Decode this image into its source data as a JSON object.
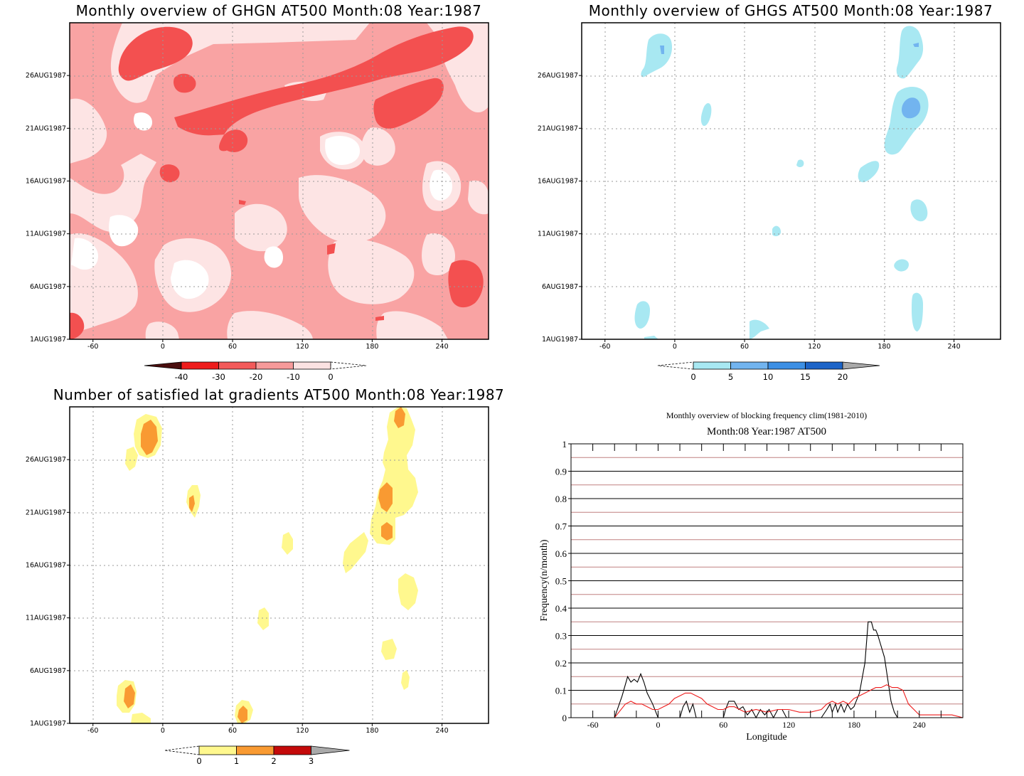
{
  "chart_data": [
    {
      "type": "heatmap",
      "title": "Monthly overview of GHGN AT500 Month:08 Year:1987",
      "x_ticks": [
        -60,
        0,
        60,
        120,
        180,
        240
      ],
      "xlim": [
        -80,
        280
      ],
      "y_ticks": [
        "1AUG1987",
        "6AUG1987",
        "11AUG1987",
        "16AUG1987",
        "21AUG1987",
        "26AUG1987"
      ],
      "colorbar": {
        "labels": [
          "-40",
          "-30",
          "-20",
          "-10",
          "0"
        ],
        "colors": [
          "#4a0e0e",
          "#ee1c1c",
          "#f35a5a",
          "#f79a9a",
          "#fbe2e2"
        ]
      },
      "colors": {
        "background": "#f9a3a3",
        "light": "#fde4e4",
        "white": "#ffffff",
        "dark": "#f35050"
      }
    },
    {
      "type": "heatmap",
      "title": "Monthly overview of GHGS AT500 Month:08 Year:1987",
      "x_ticks": [
        -60,
        0,
        60,
        120,
        180,
        240
      ],
      "xlim": [
        -80,
        280
      ],
      "y_ticks": [
        "1AUG1987",
        "6AUG1987",
        "11AUG1987",
        "16AUG1987",
        "21AUG1987",
        "26AUG1987"
      ],
      "colorbar": {
        "labels": [
          "0",
          "5",
          "10",
          "15",
          "20"
        ],
        "colors": [
          "#a8e8f2",
          "#72b4ef",
          "#3c8fe4",
          "#1c64c8",
          "#a9a9a9"
        ]
      }
    },
    {
      "type": "heatmap",
      "title": "Number of satisfied lat gradients AT500 Month:08 Year:1987",
      "x_ticks": [
        -60,
        0,
        60,
        120,
        180,
        240
      ],
      "xlim": [
        -80,
        280
      ],
      "y_ticks": [
        "1AUG1987",
        "6AUG1987",
        "11AUG1987",
        "16AUG1987",
        "21AUG1987",
        "26AUG1987"
      ],
      "colorbar": {
        "labels": [
          "0",
          "1",
          "2",
          "3"
        ],
        "colors": [
          "#fff88e",
          "#f99a32",
          "#c40a0a",
          "#a9a9a9"
        ]
      }
    },
    {
      "type": "line",
      "title": "Monthly overview of blocking frequency clim(1981-2010)",
      "subtitle": "Month:08 Year:1987  AT500",
      "xlabel": "Longitude",
      "ylabel": "Frequency(n/month)",
      "x_ticks": [
        -60,
        0,
        60,
        120,
        180,
        240
      ],
      "y_ticks": [
        "0",
        "0.1",
        "0.2",
        "0.3",
        "0.4",
        "0.5",
        "0.6",
        "0.7",
        "0.8",
        "0.9",
        "1"
      ],
      "xlim": [
        -80,
        280
      ],
      "ylim": [
        0,
        1
      ],
      "series": [
        {
          "color": "#000000",
          "x": [
            -80,
            -40,
            -33,
            -28,
            -25,
            -22,
            -19,
            -16,
            -13,
            -10,
            -5,
            0,
            10,
            20,
            23,
            26,
            29,
            32,
            35,
            60,
            62,
            65,
            70,
            74,
            78,
            82,
            86,
            90,
            94,
            98,
            102,
            106,
            110,
            114,
            118,
            150,
            155,
            158,
            160,
            163,
            165,
            168,
            171,
            174,
            177,
            180,
            185,
            190,
            193,
            196,
            198,
            200,
            202,
            205,
            208,
            211,
            214,
            217,
            220,
            222,
            240,
            260,
            280
          ],
          "y": [
            0,
            0,
            0.08,
            0.15,
            0.13,
            0.14,
            0.13,
            0.16,
            0.13,
            0.09,
            0.05,
            0,
            0,
            0,
            0.04,
            0.06,
            0.02,
            0.05,
            0,
            0,
            0.03,
            0.06,
            0.06,
            0.03,
            0.04,
            0.01,
            0.03,
            0,
            0.03,
            0.01,
            0.03,
            0,
            0.03,
            0.03,
            0,
            0,
            0.03,
            0.05,
            0.02,
            0.05,
            0.02,
            0.05,
            0.02,
            0.05,
            0.03,
            0.04,
            0.09,
            0.2,
            0.35,
            0.35,
            0.32,
            0.32,
            0.3,
            0.26,
            0.22,
            0.14,
            0.06,
            0.02,
            0,
            0,
            0,
            0,
            0
          ]
        },
        {
          "color": "#ee1c1c",
          "x": [
            -80,
            -40,
            -30,
            -25,
            -20,
            -15,
            -10,
            -5,
            0,
            5,
            10,
            15,
            20,
            25,
            30,
            35,
            40,
            45,
            50,
            55,
            60,
            65,
            70,
            75,
            80,
            90,
            100,
            110,
            120,
            130,
            140,
            150,
            155,
            160,
            165,
            170,
            175,
            180,
            185,
            190,
            195,
            200,
            205,
            210,
            215,
            220,
            225,
            230,
            240,
            250,
            260,
            270,
            280
          ],
          "y": [
            0,
            0,
            0.05,
            0.06,
            0.05,
            0.05,
            0.04,
            0.03,
            0.03,
            0.04,
            0.05,
            0.07,
            0.08,
            0.09,
            0.09,
            0.08,
            0.07,
            0.05,
            0.04,
            0.03,
            0.03,
            0.04,
            0.04,
            0.03,
            0.02,
            0.03,
            0.02,
            0.03,
            0.03,
            0.02,
            0.02,
            0.03,
            0.05,
            0.06,
            0.05,
            0.06,
            0.05,
            0.07,
            0.08,
            0.09,
            0.1,
            0.11,
            0.11,
            0.12,
            0.11,
            0.11,
            0.1,
            0.05,
            0.01,
            0.01,
            0.01,
            0.01,
            0
          ]
        }
      ]
    }
  ]
}
